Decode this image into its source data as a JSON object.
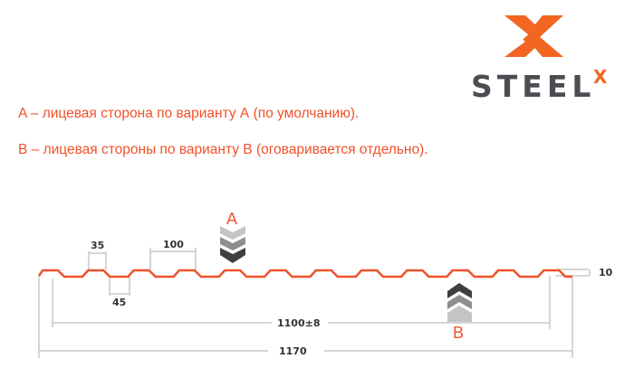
{
  "logo": {
    "text": "STEEL",
    "superscript": "X",
    "accent_color": "#f26522",
    "text_color": "#4a4d52"
  },
  "notes": [
    "A – лицевая сторона по варианту А (по умолчанию).",
    "B – лицевая стороны по варианту B (оговаривается отдельно)."
  ],
  "diagram": {
    "profile_color": "#f0522a",
    "side_a_label": "A",
    "side_b_label": "B",
    "dims": {
      "crest_width": "35",
      "trough_width": "45",
      "pitch": "100",
      "height": "10",
      "useful_width": "1100±8",
      "total_width": "1170"
    }
  }
}
